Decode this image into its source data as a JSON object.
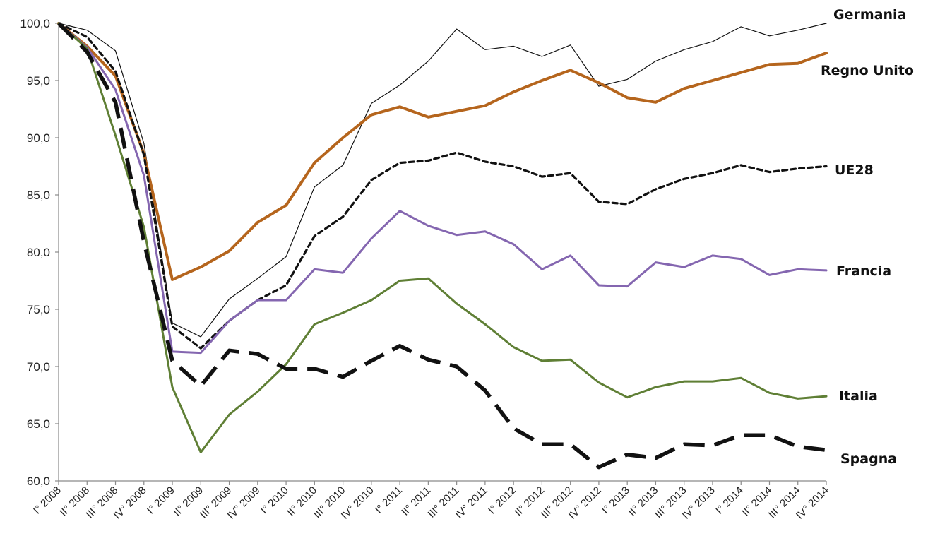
{
  "chart_data": {
    "type": "line",
    "title": "",
    "xlabel": "",
    "ylabel": "",
    "ylim": [
      60,
      100
    ],
    "y_ticks": [
      "60,0",
      "65,0",
      "70,0",
      "75,0",
      "80,0",
      "85,0",
      "90,0",
      "95,0",
      "100,0"
    ],
    "y_tick_values": [
      60,
      65,
      70,
      75,
      80,
      85,
      90,
      95,
      100
    ],
    "grid": false,
    "legend": "direct labels at line ends (right)",
    "categories": [
      "I° 2008",
      "II° 2008",
      "III° 2008",
      "IV° 2008",
      "I° 2009",
      "II° 2009",
      "III° 2009",
      "IV° 2009",
      "I° 2010",
      "II° 2010",
      "III° 2010",
      "IV° 2010",
      "I° 2011",
      "II° 2011",
      "III° 2011",
      "IV° 2011",
      "I° 2012",
      "II° 2012",
      "III° 2012",
      "IV° 2012",
      "I° 2013",
      "II° 2013",
      "III° 2013",
      "IV° 2013",
      "I° 2014",
      "II° 2014",
      "III° 2014",
      "IV° 2014"
    ],
    "series": [
      {
        "name": "Germania",
        "color": "#111111",
        "style": "thin",
        "values": [
          100.0,
          99.4,
          97.6,
          89.5,
          73.8,
          72.6,
          75.9,
          77.7,
          79.6,
          85.7,
          87.6,
          93.0,
          94.6,
          96.7,
          99.5,
          97.7,
          98.0,
          97.1,
          98.1,
          94.5,
          95.1,
          96.7,
          97.7,
          98.4,
          99.7,
          98.9,
          99.4,
          100.0
        ]
      },
      {
        "name": "Regno Unito",
        "color": "#b5651d",
        "style": "thick",
        "values": [
          100.0,
          98.0,
          95.4,
          88.6,
          77.6,
          78.7,
          80.1,
          82.6,
          84.1,
          87.8,
          90.0,
          92.0,
          92.7,
          91.8,
          92.3,
          92.8,
          94.0,
          95.0,
          95.9,
          94.8,
          93.5,
          93.1,
          94.3,
          95.0,
          95.7,
          96.4,
          96.5,
          97.4
        ]
      },
      {
        "name": "UE28",
        "color": "#111111",
        "style": "dotted",
        "values": [
          100.0,
          98.8,
          95.8,
          88.5,
          73.5,
          71.6,
          74.0,
          75.8,
          77.1,
          81.4,
          83.1,
          86.3,
          87.8,
          88.0,
          88.7,
          87.9,
          87.5,
          86.6,
          86.9,
          84.4,
          84.2,
          85.5,
          86.4,
          86.9,
          87.6,
          87.0,
          87.3,
          87.5
        ]
      },
      {
        "name": "Francia",
        "color": "#8466b0",
        "style": "medium",
        "values": [
          100.0,
          97.9,
          94.2,
          86.7,
          71.3,
          71.2,
          74.0,
          75.8,
          75.8,
          78.5,
          78.2,
          81.2,
          83.6,
          82.3,
          81.5,
          81.8,
          80.7,
          78.5,
          79.7,
          77.1,
          77.0,
          79.1,
          78.7,
          79.7,
          79.4,
          78.0,
          78.5,
          78.4
        ]
      },
      {
        "name": "Italia",
        "color": "#5f7f35",
        "style": "medium",
        "values": [
          100.0,
          97.8,
          90.2,
          82.2,
          68.2,
          62.5,
          65.8,
          67.8,
          70.2,
          73.7,
          74.7,
          75.8,
          77.5,
          77.7,
          75.5,
          73.7,
          71.7,
          70.5,
          70.6,
          68.6,
          67.3,
          68.2,
          68.7,
          68.7,
          69.0,
          67.7,
          67.2,
          67.4
        ]
      },
      {
        "name": "Spagna",
        "color": "#111111",
        "style": "dashed",
        "values": [
          100.0,
          97.5,
          93.1,
          80.9,
          70.5,
          68.3,
          71.4,
          71.1,
          69.8,
          69.8,
          69.1,
          70.5,
          71.8,
          70.6,
          70.0,
          67.9,
          64.6,
          63.2,
          63.2,
          61.2,
          62.3,
          62.0,
          63.2,
          63.1,
          64.0,
          64.0,
          63.0,
          62.7
        ]
      }
    ]
  }
}
